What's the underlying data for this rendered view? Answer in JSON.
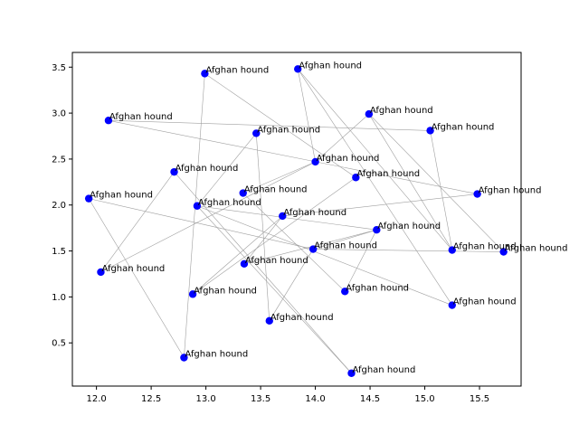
{
  "chart_data": {
    "type": "scatter",
    "title": "",
    "xlabel": "",
    "ylabel": "",
    "xlim": [
      11.78,
      15.88
    ],
    "ylim": [
      0.03,
      3.66
    ],
    "xticks": [
      "12.0",
      "12.5",
      "13.0",
      "13.5",
      "14.0",
      "14.5",
      "15.0",
      "15.5"
    ],
    "yticks": [
      "0.5",
      "1.0",
      "1.5",
      "2.0",
      "2.5",
      "3.0",
      "3.5"
    ],
    "xtick_values": [
      12.0,
      12.5,
      13.0,
      13.5,
      14.0,
      14.5,
      15.0,
      15.5
    ],
    "ytick_values": [
      0.5,
      1.0,
      1.5,
      2.0,
      2.5,
      3.0,
      3.5
    ],
    "grid": false,
    "marker_color": "#0000ff",
    "edge_color": "#a0a0a0",
    "points": [
      {
        "x": 13.84,
        "y": 3.48,
        "label": "Afghan hound"
      },
      {
        "x": 12.99,
        "y": 3.43,
        "label": "Afghan hound"
      },
      {
        "x": 12.11,
        "y": 2.92,
        "label": "Afghan hound"
      },
      {
        "x": 14.49,
        "y": 2.99,
        "label": "Afghan hound"
      },
      {
        "x": 15.05,
        "y": 2.81,
        "label": "Afghan hound"
      },
      {
        "x": 13.46,
        "y": 2.78,
        "label": "Afghan hound"
      },
      {
        "x": 14.0,
        "y": 2.47,
        "label": "Afghan hound"
      },
      {
        "x": 12.71,
        "y": 2.36,
        "label": "Afghan hound"
      },
      {
        "x": 14.37,
        "y": 2.3,
        "label": "Afghan hound"
      },
      {
        "x": 15.48,
        "y": 2.12,
        "label": "Afghan hound"
      },
      {
        "x": 13.34,
        "y": 2.13,
        "label": "Afghan hound"
      },
      {
        "x": 11.93,
        "y": 2.07,
        "label": "Afghan hound"
      },
      {
        "x": 12.92,
        "y": 1.99,
        "label": "Afghan hound"
      },
      {
        "x": 13.7,
        "y": 1.88,
        "label": "Afghan hound"
      },
      {
        "x": 14.56,
        "y": 1.73,
        "label": "Afghan hound"
      },
      {
        "x": 15.25,
        "y": 1.51,
        "label": "Afghan hound"
      },
      {
        "x": 15.72,
        "y": 1.49,
        "label": "Afghan hound"
      },
      {
        "x": 13.98,
        "y": 1.52,
        "label": "Afghan hound"
      },
      {
        "x": 13.35,
        "y": 1.36,
        "label": "Afghan hound"
      },
      {
        "x": 12.04,
        "y": 1.27,
        "label": "Afghan hound"
      },
      {
        "x": 14.27,
        "y": 1.06,
        "label": "Afghan hound"
      },
      {
        "x": 12.88,
        "y": 1.03,
        "label": "Afghan hound"
      },
      {
        "x": 15.25,
        "y": 0.91,
        "label": "Afghan hound"
      },
      {
        "x": 13.58,
        "y": 0.74,
        "label": "Afghan hound"
      },
      {
        "x": 12.8,
        "y": 0.34,
        "label": "Afghan hound"
      },
      {
        "x": 14.33,
        "y": 0.17,
        "label": "Afghan hound"
      }
    ],
    "edges": [
      [
        0,
        6
      ],
      [
        0,
        22
      ],
      [
        0,
        15
      ],
      [
        1,
        24
      ],
      [
        1,
        8
      ],
      [
        2,
        4
      ],
      [
        2,
        9
      ],
      [
        3,
        16
      ],
      [
        3,
        15
      ],
      [
        3,
        6
      ],
      [
        4,
        15
      ],
      [
        5,
        12
      ],
      [
        5,
        23
      ],
      [
        6,
        10
      ],
      [
        6,
        19
      ],
      [
        7,
        19
      ],
      [
        7,
        25
      ],
      [
        8,
        21
      ],
      [
        10,
        20
      ],
      [
        11,
        24
      ],
      [
        11,
        17
      ],
      [
        12,
        22
      ],
      [
        12,
        14
      ],
      [
        12,
        25
      ],
      [
        13,
        18
      ],
      [
        13,
        21
      ],
      [
        13,
        9
      ],
      [
        14,
        20
      ],
      [
        14,
        18
      ],
      [
        17,
        16
      ],
      [
        17,
        23
      ],
      [
        17,
        14
      ]
    ]
  }
}
